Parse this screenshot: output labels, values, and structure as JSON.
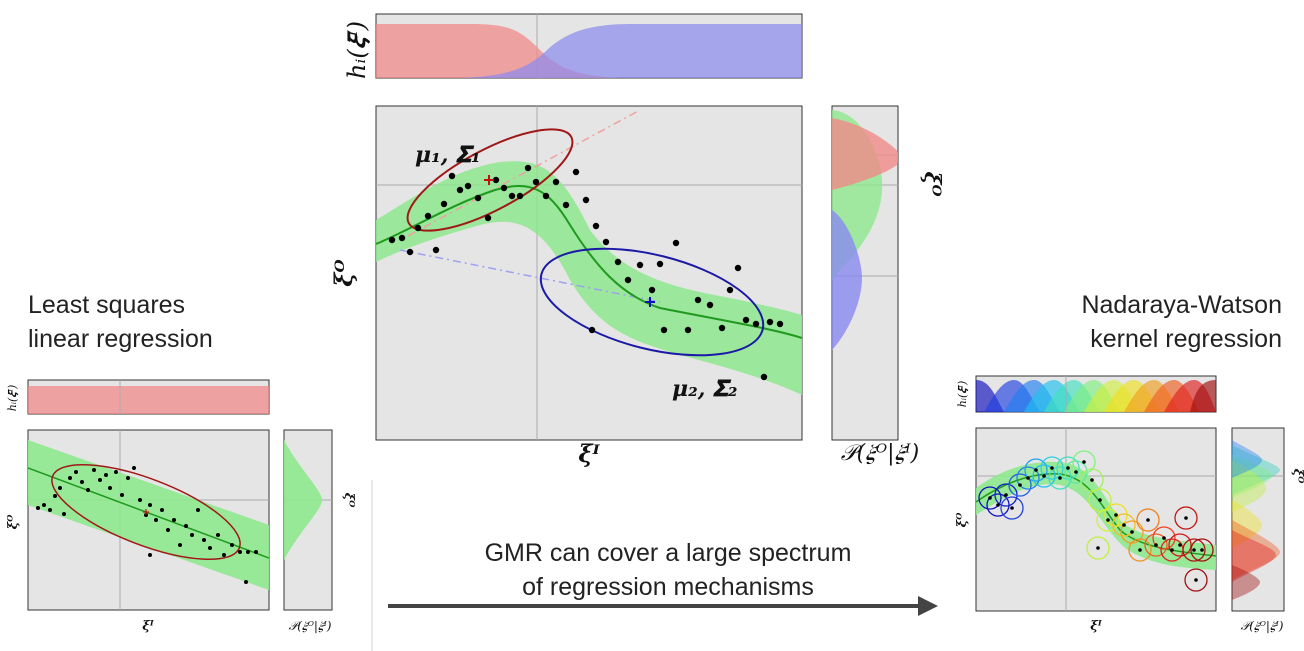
{
  "panels": {
    "left_title_line1": "Least squares",
    "left_title_line2": "linear regression",
    "right_title_line1": "Nadaraya-Watson",
    "right_title_line2": "kernel regression",
    "arrow_caption_line1": "GMR can cover a large spectrum",
    "arrow_caption_line2": "of regression mechanisms"
  },
  "math_labels": {
    "h_weight": "h_i(ξ^I)",
    "xi_in": "ξ^I",
    "xi_out": "ξ^O",
    "conditional": "P(ξ^O|ξ^I)",
    "component1": "μ1, Σ1",
    "component2": "μ2, Σ2"
  },
  "colors": {
    "panel_bg": "#e5e5e5",
    "band_green": "#8ee88e",
    "regression_line": "#1f9a1f",
    "ellipse_red": "#a01818",
    "ellipse_blue": "#1a1aa6",
    "weight_red": "#f08a8a",
    "weight_blue": "#8a8af0",
    "arrow": "#444444"
  }
}
